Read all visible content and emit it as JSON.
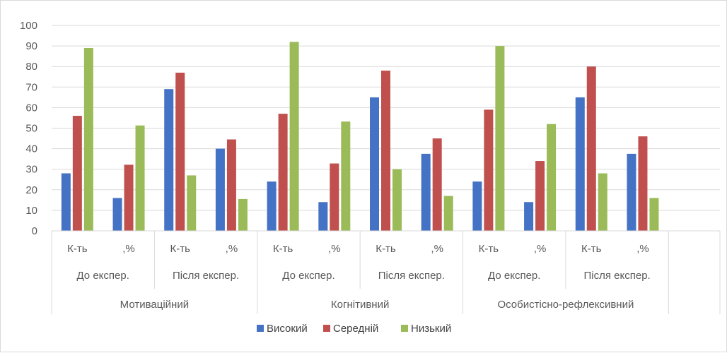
{
  "chart_data": {
    "type": "bar",
    "title": "",
    "xlabel": "",
    "ylabel": "",
    "ylim": [
      0,
      100
    ],
    "yticks": [
      0,
      10,
      20,
      30,
      40,
      50,
      60,
      70,
      80,
      90,
      100
    ],
    "grid": true,
    "legend_position": "bottom",
    "categories": [
      "К-ть",
      ",%",
      "К-ть",
      ",%",
      "К-ть",
      ",%",
      "К-ть",
      ",%",
      "К-ть",
      ",%",
      "К-ть",
      ",%"
    ],
    "category_groups_level2": [
      {
        "label": "До експер.",
        "span": 2
      },
      {
        "label": "Після експер.",
        "span": 2
      },
      {
        "label": "До експер.",
        "span": 2
      },
      {
        "label": "Після експер.",
        "span": 2
      },
      {
        "label": "До експер.",
        "span": 2
      },
      {
        "label": "Після експер.",
        "span": 2
      }
    ],
    "category_groups_level3": [
      {
        "label": "Мотиваційний",
        "span": 4
      },
      {
        "label": "Когнітивний",
        "span": 4
      },
      {
        "label": "Особистісно-рефлексивний",
        "span": 4
      }
    ],
    "series": [
      {
        "name": "Високий",
        "color": "#4472c4",
        "values": [
          28,
          16,
          69,
          40,
          24,
          14,
          65,
          37.5,
          24,
          14,
          65,
          37.5
        ]
      },
      {
        "name": "Середній",
        "color": "#c0504d",
        "values": [
          56,
          32.2,
          77,
          44.5,
          57,
          32.8,
          78,
          45,
          59,
          34,
          80,
          46
        ]
      },
      {
        "name": "Низький",
        "color": "#9bbb59",
        "values": [
          89,
          51.3,
          27,
          15.5,
          92,
          53.2,
          30,
          17,
          90,
          52,
          28,
          16
        ]
      }
    ]
  }
}
